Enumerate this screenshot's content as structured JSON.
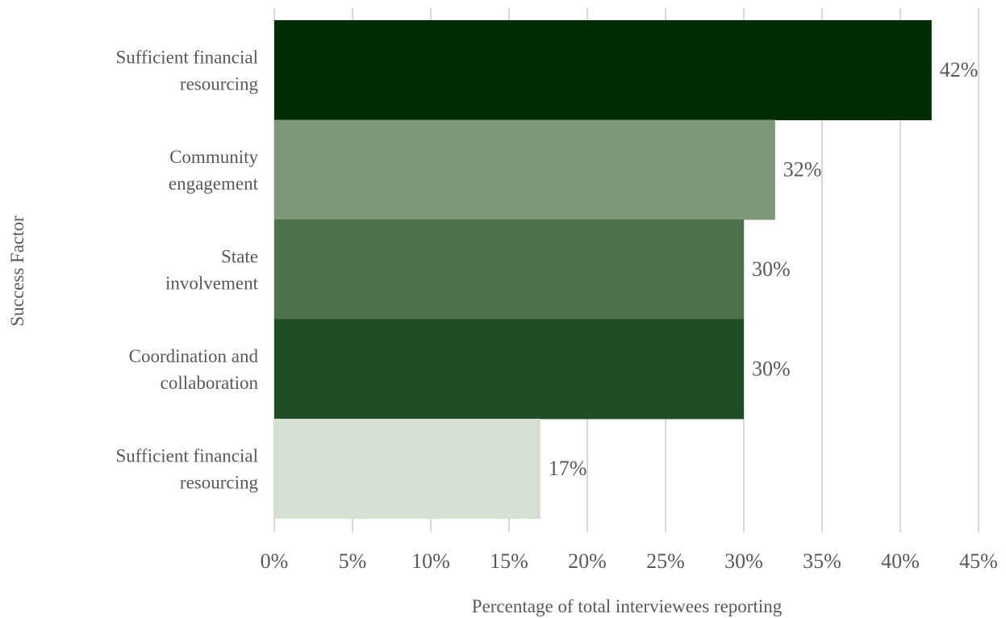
{
  "chart_data": {
    "type": "bar",
    "orientation": "horizontal",
    "title": "",
    "xlabel": "Percentage of total interviewees reporting",
    "ylabel": "Success Factor",
    "categories": [
      "Sufficient financial resourcing",
      "Community engagement",
      "State involvement",
      "Coordination and collaboration",
      "Sufficient financial resourcing"
    ],
    "category_lines": [
      [
        "Sufficient financial",
        "resourcing"
      ],
      [
        "Community",
        "engagement"
      ],
      [
        "State",
        "involvement"
      ],
      [
        "Coordination and",
        "collaboration"
      ],
      [
        "Sufficient financial",
        "resourcing"
      ]
    ],
    "values": [
      42,
      32,
      30,
      30,
      17
    ],
    "value_unit": "%",
    "data_labels": [
      "42%",
      "32%",
      "30%",
      "30%",
      "17%"
    ],
    "bar_colors": [
      "#002c05",
      "#7e977a",
      "#4d714d",
      "#1f4d25",
      "#d5e0d3"
    ],
    "xlim": [
      0,
      45
    ],
    "x_ticks": [
      0,
      5,
      10,
      15,
      20,
      25,
      30,
      35,
      40,
      45
    ],
    "x_tick_labels": [
      "0%",
      "5%",
      "10%",
      "15%",
      "20%",
      "25%",
      "30%",
      "35%",
      "40%",
      "45%"
    ],
    "grid": "vertical",
    "legend": "none"
  }
}
